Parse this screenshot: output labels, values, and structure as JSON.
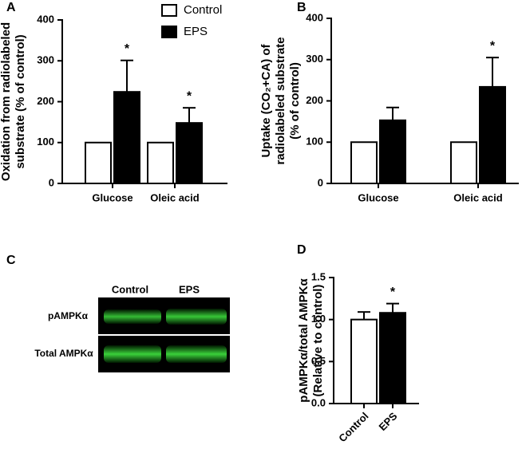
{
  "chart_data": [
    {
      "type": "bar",
      "panel": "A",
      "ylabel": [
        "Oxidation from radiolabeled",
        "substrate (% of control)"
      ],
      "categories": [
        "Glucose",
        "Oleic acid"
      ],
      "series": [
        {
          "name": "Control",
          "color": "#ffffff",
          "values": [
            100,
            100
          ]
        },
        {
          "name": "EPS",
          "color": "#000000",
          "values": [
            224,
            148
          ],
          "errors": [
            77,
            37
          ],
          "significance": [
            "*",
            "*"
          ]
        }
      ],
      "ylim": [
        0,
        400
      ],
      "yticks": [
        0,
        100,
        200,
        300,
        400
      ],
      "legend": "top"
    },
    {
      "type": "bar",
      "panel": "B",
      "ylabel": [
        "Uptake (CO₂+CA) of",
        "radiolabeled substrate",
        "(% of control)"
      ],
      "categories": [
        "Glucose",
        "Oleic acid"
      ],
      "series": [
        {
          "name": "Control",
          "color": "#ffffff",
          "values": [
            100,
            100
          ]
        },
        {
          "name": "EPS",
          "color": "#000000",
          "values": [
            153,
            234
          ],
          "errors": [
            31,
            71
          ],
          "significance": [
            null,
            "*"
          ]
        }
      ],
      "ylim": [
        0,
        400
      ],
      "yticks": [
        0,
        100,
        200,
        300,
        400
      ]
    },
    {
      "type": "bar",
      "panel": "D",
      "ylabel": [
        "pAMPKα/total AMPKα",
        "(Relative to control)"
      ],
      "categories": [
        "Control",
        "EPS"
      ],
      "values": [
        1.0,
        1.08
      ],
      "errors": [
        0.09,
        0.11
      ],
      "colors": [
        "#ffffff",
        "#000000"
      ],
      "significance": [
        null,
        "*"
      ],
      "ylim": [
        0,
        1.5
      ],
      "yticks": [
        {
          "value": 0,
          "label": "0.0"
        },
        0.5,
        {
          "value": 1,
          "label": "1.0"
        },
        1.5
      ]
    }
  ],
  "blot": {
    "panel": "C",
    "columns": [
      "Control",
      "EPS"
    ],
    "rows": [
      "pAMPKα",
      "Total AMPKα"
    ]
  }
}
